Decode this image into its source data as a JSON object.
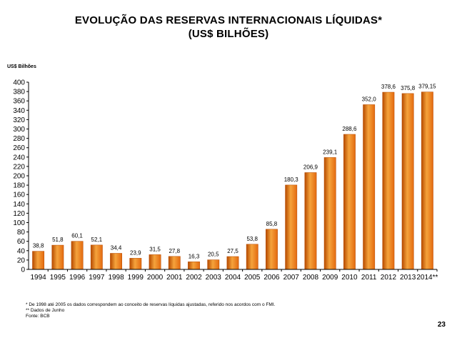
{
  "header": {
    "title_line1": "EVOLUÇÃO DAS RESERVAS INTERNACIONAIS LÍQUIDAS*",
    "title_line2": "(US$ BILHÕES)"
  },
  "footer": {
    "note1": "* De 1998 até 2005 os dados correspondem ao conceito de reservas líquidas ajustadas, referido nos acordos com o FMI.",
    "note2": "** Dados de Junho",
    "source": "Fonte: BCB",
    "page_number": "23"
  },
  "chart_data": {
    "type": "bar",
    "title": "",
    "xlabel": "",
    "ylabel": "US$ Bilhões",
    "categories": [
      "1994",
      "1995",
      "1996",
      "1997",
      "1998",
      "1999",
      "2000",
      "2001",
      "2002",
      "2003",
      "2004",
      "2005",
      "2006",
      "2007",
      "2008",
      "2009",
      "2010",
      "2011",
      "2012",
      "2013",
      "2014**"
    ],
    "values": [
      38.8,
      51.8,
      60.1,
      52.1,
      34.4,
      23.9,
      31.5,
      27.8,
      16.3,
      20.5,
      27.5,
      53.8,
      85.8,
      180.3,
      206.9,
      239.1,
      288.6,
      352.0,
      378.6,
      375.8,
      379.15
    ],
    "value_labels": [
      "38,8",
      "51,8",
      "60,1",
      "52,1",
      "34,4",
      "23,9",
      "31,5",
      "27,8",
      "16,3",
      "20,5",
      "27,5",
      "53,8",
      "85,8",
      "180,3",
      "206,9",
      "239,1",
      "288,6",
      "352,0",
      "378,6",
      "375,8",
      "379,15"
    ],
    "ylim": [
      0,
      400
    ],
    "yticks": [
      0,
      20,
      40,
      60,
      80,
      100,
      120,
      140,
      160,
      180,
      200,
      220,
      240,
      260,
      280,
      300,
      320,
      340,
      360,
      380,
      400
    ],
    "grid": false,
    "legend": "none",
    "bar_color": "#e36a10",
    "bar_color_light": "#f5a33c",
    "bar_color_dark": "#b64a00"
  }
}
